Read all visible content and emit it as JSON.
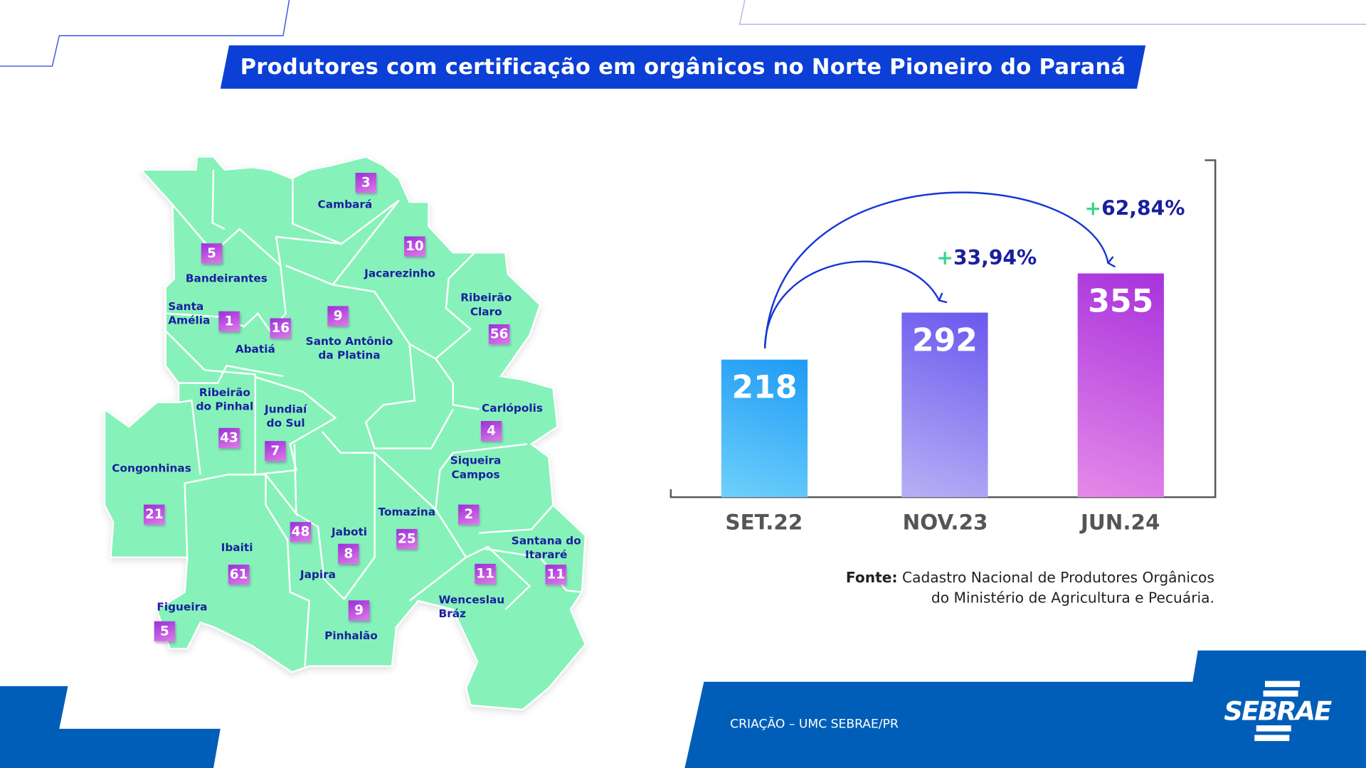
{
  "title": "Produtores com certificação em orgânicos no Norte Pioneiro do Paraná",
  "map": {
    "fill_color": "#86f2b9",
    "badge_color": "#b13fdc",
    "municipalities": [
      {
        "name": "Cambará",
        "count": "3"
      },
      {
        "name": "Bandeirantes",
        "count": "5"
      },
      {
        "name": "Jacarezinho",
        "count": "10"
      },
      {
        "name": "Ribeirão Claro",
        "count": "56"
      },
      {
        "name": "Santa Amélia",
        "count": "1"
      },
      {
        "name": "Abatiá",
        "count": "16"
      },
      {
        "name": "Santo Antônio da Platina",
        "count": "9"
      },
      {
        "name": "Ribeirão do Pinhal",
        "count": "43"
      },
      {
        "name": "Jundiaí do Sul",
        "count": "7"
      },
      {
        "name": "Carlópolis",
        "count": "4"
      },
      {
        "name": "Congonhinas",
        "count": "21"
      },
      {
        "name": "Siqueira Campos",
        "count": "2"
      },
      {
        "name": "Tomazina",
        "count": "25"
      },
      {
        "name": "Ibaiti",
        "count": "61"
      },
      {
        "name": "Japira",
        "count": "48"
      },
      {
        "name": "Jaboti",
        "count": "8"
      },
      {
        "name": "Santana do Itararé",
        "count": "11"
      },
      {
        "name": "Wenceslau Bráz",
        "count": "11"
      },
      {
        "name": "Figueira",
        "count": "5"
      },
      {
        "name": "Pinhalão",
        "count": "9"
      }
    ]
  },
  "chart_data": {
    "type": "bar",
    "categories": [
      "SET.22",
      "NOV.23",
      "JUN.24"
    ],
    "values": [
      218,
      292,
      355
    ],
    "value_labels": [
      "218",
      "292",
      "355"
    ],
    "colors": [
      "#1e9bf5",
      "#6a58ee",
      "#a832dc"
    ],
    "annotations": [
      {
        "from": "SET.22",
        "to": "NOV.23",
        "text": "33,94%",
        "sign": "+"
      },
      {
        "from": "SET.22",
        "to": "JUN.24",
        "text": "62,84%",
        "sign": "+"
      }
    ],
    "ylim": [
      0,
      534
    ],
    "grid": false
  },
  "source": {
    "label": "Fonte:",
    "line1": "Cadastro Nacional de Produtores Orgânicos",
    "line2": "do Ministério de Agricultura e Pecuária."
  },
  "footer": {
    "credit": "CRIAÇÃO – UMC SEBRAE/PR",
    "logo_text": "SEBRAE",
    "brand_color": "#005eb8"
  }
}
